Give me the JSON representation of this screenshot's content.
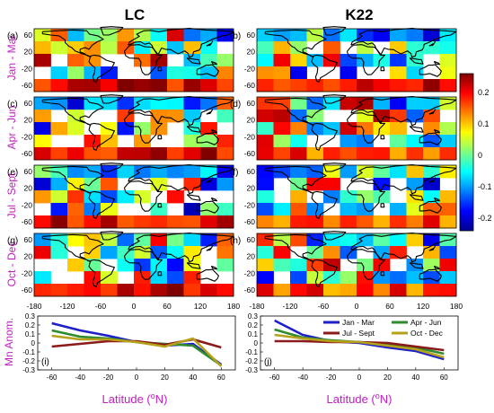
{
  "column_titles": [
    "LC",
    "K22"
  ],
  "season_labels": [
    "Jan - Mar",
    "Apr - Jun",
    "Jul - Sept",
    "Oct - Dec"
  ],
  "panel_letters": {
    "maps": [
      "(a)",
      "(b)",
      "(c)",
      "(d)",
      "(e)",
      "(f)",
      "(g)",
      "(h)"
    ],
    "lines": [
      "(i)",
      "(j)"
    ]
  },
  "map_axes": {
    "lat_ticks": [
      "60",
      "20",
      "-20",
      "-60"
    ],
    "lon_ticks": [
      "-180",
      "-120",
      "-60",
      "0",
      "60",
      "120",
      "180"
    ]
  },
  "colorbar": {
    "range": [
      -0.25,
      0.25
    ],
    "ticks": [
      "0.2",
      "0.1",
      "0",
      "-0.1",
      "-0.2"
    ],
    "colormap": "jet"
  },
  "chart_data": [
    {
      "type": "line",
      "panel": "(i)",
      "x": [
        -60,
        -40,
        -20,
        0,
        20,
        40,
        60
      ],
      "xlim": [
        -70,
        70
      ],
      "ylim": [
        -0.3,
        0.3
      ],
      "x_ticks": [
        "-60",
        "-40",
        "-20",
        "0",
        "20",
        "40",
        "60"
      ],
      "y_ticks": [
        "0.3",
        "0.2",
        "0.1",
        "0",
        "-0.1",
        "-0.2",
        "-0.3"
      ],
      "ylabel": "Mn Anom.",
      "xlabel": "Latitude (oN)",
      "series": [
        {
          "name": "Jan - Mar",
          "color": "#1f1fc8",
          "values": [
            0.22,
            0.14,
            0.08,
            0.01,
            -0.03,
            -0.01,
            -0.24
          ]
        },
        {
          "name": "Apr - Jun",
          "color": "#2e8b2e",
          "values": [
            0.14,
            0.07,
            0.05,
            0.01,
            -0.01,
            -0.03,
            -0.25
          ]
        },
        {
          "name": "Jul - Sept",
          "color": "#8b1a1a",
          "values": [
            -0.04,
            -0.01,
            0.02,
            0.02,
            -0.02,
            0.04,
            -0.05
          ]
        },
        {
          "name": "Oct - Dec",
          "color": "#b5a21a",
          "values": [
            0.08,
            0.04,
            0.04,
            0.01,
            -0.04,
            0.05,
            -0.26
          ]
        }
      ]
    },
    {
      "type": "line",
      "panel": "(j)",
      "x": [
        -60,
        -40,
        -20,
        0,
        20,
        40,
        60
      ],
      "xlim": [
        -70,
        70
      ],
      "ylim": [
        -0.3,
        0.3
      ],
      "x_ticks": [
        "-60",
        "-40",
        "-20",
        "0",
        "20",
        "40",
        "60"
      ],
      "y_ticks": [
        "0.3",
        "0.2",
        "0.1",
        "0",
        "-0.1",
        "-0.2",
        "-0.3"
      ],
      "xlabel": "Latitude (oN)",
      "series": [
        {
          "name": "Jan - Mar",
          "color": "#1f1fc8",
          "values": [
            0.25,
            0.09,
            0.02,
            0.0,
            -0.05,
            -0.09,
            -0.18
          ]
        },
        {
          "name": "Apr - Jun",
          "color": "#2e8b2e",
          "values": [
            0.15,
            0.06,
            0.03,
            0.01,
            -0.02,
            -0.05,
            -0.12
          ]
        },
        {
          "name": "Jul - Sept",
          "color": "#8b1a1a",
          "values": [
            0.02,
            0.02,
            0.01,
            0.01,
            0.0,
            -0.04,
            -0.08
          ]
        },
        {
          "name": "Oct - Dec",
          "color": "#b5a21a",
          "values": [
            0.09,
            0.05,
            0.02,
            0.01,
            -0.03,
            -0.07,
            -0.16
          ]
        }
      ]
    }
  ]
}
